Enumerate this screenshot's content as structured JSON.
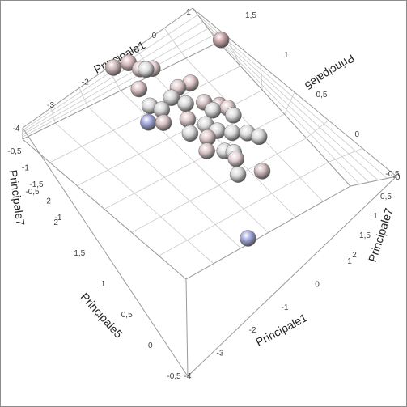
{
  "chart_data": {
    "type": "scatter",
    "title": "",
    "axes": {
      "a": {
        "label": "Principale1",
        "ticks": [
          "-4",
          "-3",
          "-2",
          "-1",
          "0",
          "1"
        ]
      },
      "b": {
        "label": "Principale7",
        "ticks": [
          "-0,5",
          "0",
          "0,5",
          "1",
          "1,5",
          "2"
        ]
      },
      "c": {
        "label": "Principale5",
        "ticks": [
          "-0,5",
          "0",
          "0,5",
          "1",
          "1,5"
        ]
      }
    },
    "edge_labels": {
      "top_left": [
        "-4",
        "-3",
        "-2",
        "-1",
        "0",
        "1"
      ],
      "top_right": [
        "1,5",
        "1",
        "0,5",
        "0",
        "-0,5"
      ],
      "left": [
        "-0,5",
        "-1",
        "-1,5",
        "-2",
        "-1",
        "-0,5",
        "2",
        "1,5",
        "1",
        "0,5",
        "0",
        "-0,5"
      ],
      "bottom": [
        "-4",
        "-3",
        "-2",
        "-1",
        "0",
        "1"
      ],
      "right": [
        "-0",
        "0,5",
        "1",
        "1,5",
        "2"
      ]
    },
    "axis_titles": {
      "top": "Principale1",
      "top_right": "Principale5",
      "left": "Principale7",
      "bottom_left": "Principale5",
      "bottom": "Principale1",
      "right": "Principale7"
    },
    "points": [
      {
        "a": -2.7,
        "b": 1.2,
        "c": 0.9,
        "color": "#c9b2b4"
      },
      {
        "a": -2.3,
        "b": 1.1,
        "c": 0.9,
        "color": "#d6b7ba"
      },
      {
        "a": -2.1,
        "b": 0.9,
        "c": 0.7,
        "color": "#d8c4c6"
      },
      {
        "a": -2.0,
        "b": 0.8,
        "c": 0.7,
        "color": "#dcdcdc"
      },
      {
        "a": -1.8,
        "b": 0.8,
        "c": 0.6,
        "color": "#e6cfd1"
      },
      {
        "a": -2.4,
        "b": 0.6,
        "c": 0.4,
        "color": "#d9c0c2"
      },
      {
        "a": -2.4,
        "b": 0.2,
        "c": 0.1,
        "color": "#dadada"
      },
      {
        "a": -2.2,
        "b": 0.0,
        "c": 0.0,
        "color": "#d4d4d4"
      },
      {
        "a": -2.8,
        "b": -0.2,
        "c": 0.1,
        "color": "#9aa0d8"
      },
      {
        "a": -2.4,
        "b": -0.3,
        "c": -0.1,
        "color": "#d7bfc1"
      },
      {
        "a": -1.8,
        "b": 0.1,
        "c": 0.1,
        "color": "#d6d6d6"
      },
      {
        "a": -1.5,
        "b": 0.2,
        "c": 0.2,
        "color": "#dfc7c9"
      },
      {
        "a": -1.1,
        "b": 0.2,
        "c": 0.1,
        "color": "#dfc4c6"
      },
      {
        "a": -1.6,
        "b": -0.2,
        "c": 0.0,
        "color": "#d8d8d8"
      },
      {
        "a": -1.8,
        "b": -0.5,
        "c": -0.2,
        "color": "#dcc6c8"
      },
      {
        "a": -1.1,
        "b": -0.3,
        "c": -0.2,
        "color": "#d3c0c2"
      },
      {
        "a": -1.0,
        "b": -0.5,
        "c": -0.4,
        "color": "#dadada"
      },
      {
        "a": -1.9,
        "b": -0.7,
        "c": -0.5,
        "color": "#d9d9d9"
      },
      {
        "a": -1.4,
        "b": -0.7,
        "c": -0.5,
        "color": "#dddddd"
      },
      {
        "a": -0.7,
        "b": -0.4,
        "c": -0.5,
        "color": "#c9aeb1"
      },
      {
        "a": -0.6,
        "b": -0.6,
        "c": -0.5,
        "color": "#dcc8ca"
      },
      {
        "a": -0.6,
        "b": -0.8,
        "c": -0.6,
        "color": "#d9d9d9"
      },
      {
        "a": -1.6,
        "b": -1.0,
        "c": -0.6,
        "color": "#dcc5c7"
      },
      {
        "a": -1.2,
        "b": -0.9,
        "c": -0.7,
        "color": "#d9d9d9"
      },
      {
        "a": -0.9,
        "b": -1.1,
        "c": -0.8,
        "color": "#dddddd"
      },
      {
        "a": -1.8,
        "b": -1.2,
        "c": -0.8,
        "color": "#dcc5c7"
      },
      {
        "a": -1.4,
        "b": -1.4,
        "c": -0.9,
        "color": "#dadada"
      },
      {
        "a": -1.2,
        "b": -1.5,
        "c": -1.0,
        "color": "#d6d6d6"
      },
      {
        "a": -0.5,
        "b": -1.2,
        "c": -1.0,
        "color": "#dddddd"
      },
      {
        "a": -0.3,
        "b": -1.4,
        "c": -1.1,
        "color": "#d8d8d8"
      },
      {
        "a": -1.3,
        "b": -1.7,
        "c": -1.0,
        "color": "#e3d0d2"
      },
      {
        "a": -1.5,
        "b": -2.0,
        "c": -1.2,
        "color": "#d9d9d9"
      },
      {
        "a": -0.9,
        "b": -2.2,
        "c": -1.3,
        "color": "#ccb5b7"
      },
      {
        "a": 0.4,
        "b": 0.8,
        "c": 0.2,
        "color": "#c89fa4"
      },
      {
        "a": -2.4,
        "b": -3.4,
        "c": -1.8,
        "color": "#9ea3dc"
      }
    ]
  }
}
